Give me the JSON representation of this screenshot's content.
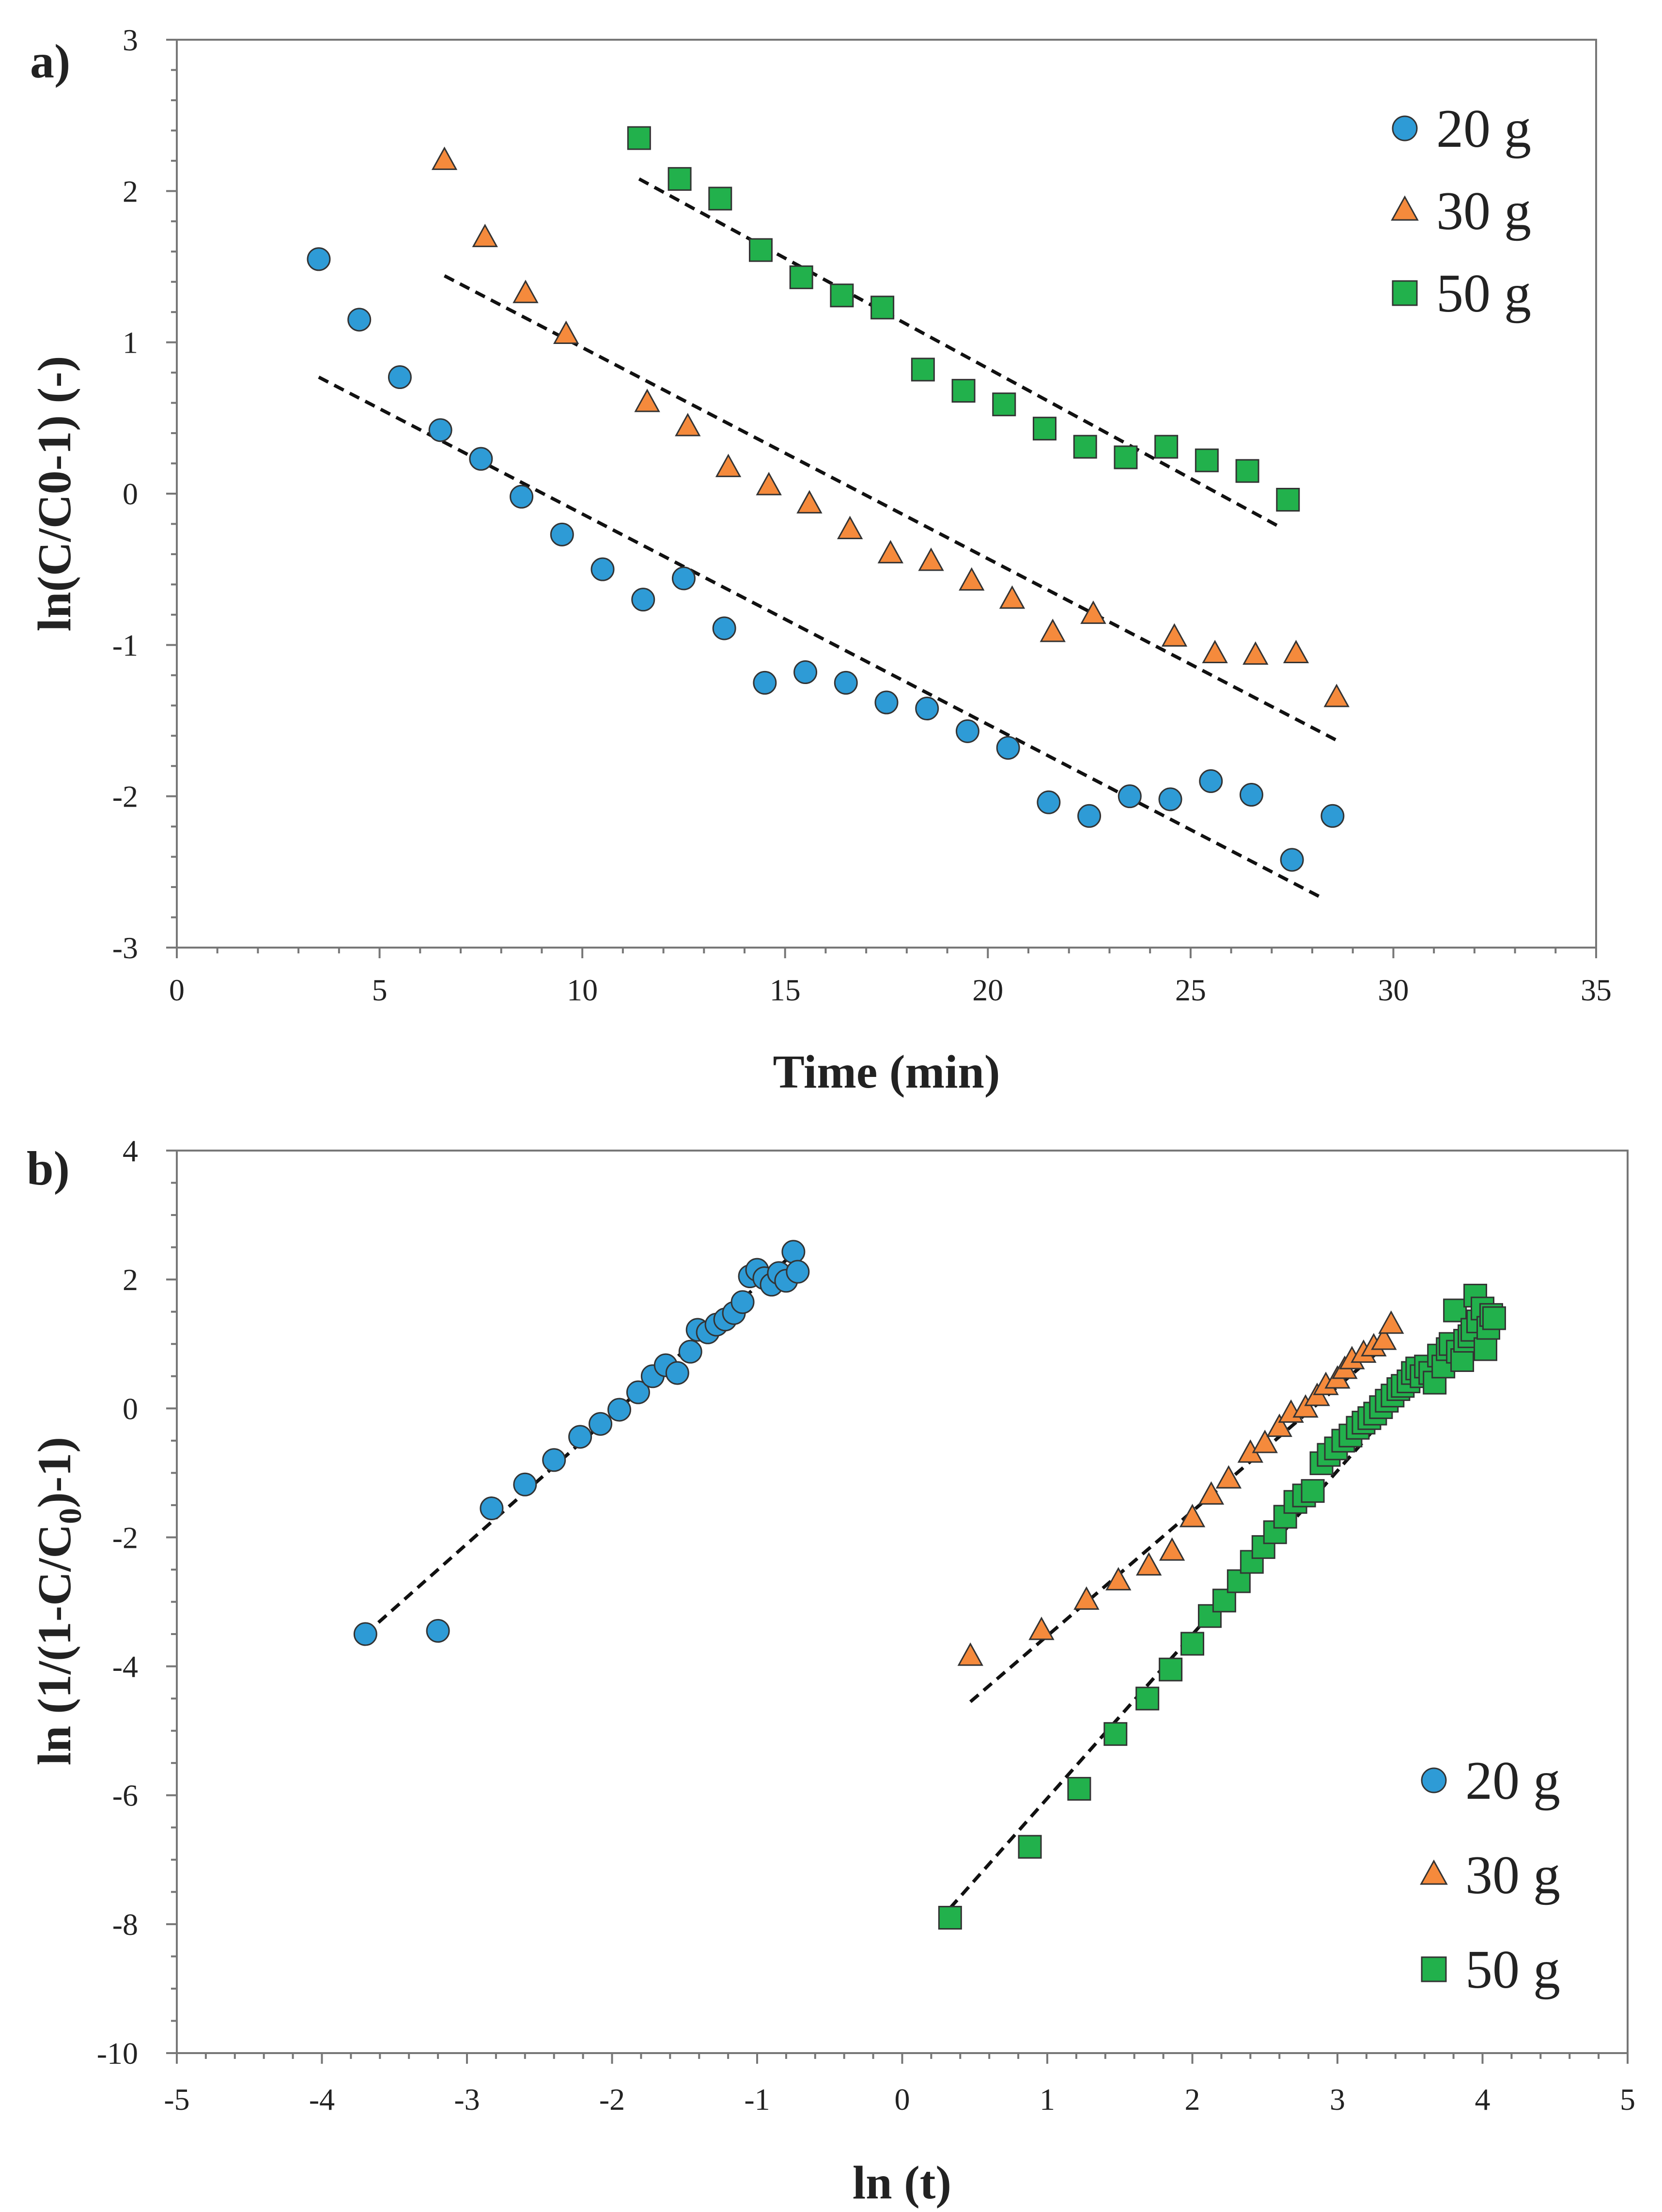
{
  "chart_data": [
    {
      "type": "scatter",
      "panel_label": "a)",
      "title": "",
      "xlabel": "Time (min)",
      "ylabel": "ln(C/C0-1) (-)",
      "xlim": [
        0,
        35
      ],
      "ylim": [
        -3,
        3
      ],
      "xticks": [
        0,
        5,
        10,
        15,
        20,
        25,
        30,
        35
      ],
      "yticks": [
        -3,
        -2,
        -1,
        0,
        1,
        2,
        3
      ],
      "grid": false,
      "legend_position": "top-right",
      "series": [
        {
          "name": "20 g",
          "marker": "circle",
          "color": "#2e9bd6",
          "x": [
            3.5,
            4.5,
            5.5,
            6.5,
            7.5,
            8.5,
            9.5,
            10.5,
            11.5,
            12.5,
            13.5,
            14.5,
            15.5,
            16.5,
            17.5,
            18.5,
            19.5,
            20.5,
            21.5,
            22.5,
            23.5,
            24.5,
            25.5,
            26.5,
            27.5,
            28.5
          ],
          "y": [
            1.55,
            1.15,
            0.77,
            0.42,
            0.23,
            -0.02,
            -0.27,
            -0.5,
            -0.7,
            -0.56,
            -0.89,
            -1.25,
            -1.18,
            -1.25,
            -1.38,
            -1.42,
            -1.57,
            -1.68,
            -2.04,
            -2.13,
            -2.0,
            -2.02,
            -1.9,
            -1.99,
            -2.42,
            -2.13
          ],
          "fit": {
            "x": [
              3.5,
              28.3
            ],
            "y": [
              0.77,
              -2.68
            ]
          }
        },
        {
          "name": "30 g",
          "marker": "triangle",
          "color": "#f58a3c",
          "x": [
            6.6,
            7.6,
            8.6,
            9.6,
            11.6,
            12.6,
            13.6,
            14.6,
            15.6,
            16.6,
            17.6,
            18.6,
            19.6,
            20.6,
            21.6,
            22.6,
            24.6,
            25.6,
            26.6,
            27.6,
            28.6
          ],
          "y": [
            2.2,
            1.69,
            1.32,
            1.05,
            0.6,
            0.44,
            0.17,
            0.05,
            -0.07,
            -0.24,
            -0.4,
            -0.45,
            -0.58,
            -0.7,
            -0.92,
            -0.8,
            -0.95,
            -1.06,
            -1.07,
            -1.06,
            -1.35
          ],
          "fit": {
            "x": [
              6.6,
              28.6
            ],
            "y": [
              1.44,
              -1.63
            ]
          }
        },
        {
          "name": "50 g",
          "marker": "square",
          "color": "#22b14c",
          "x": [
            11.4,
            12.4,
            13.4,
            14.4,
            15.4,
            16.4,
            17.4,
            18.4,
            19.4,
            20.4,
            21.4,
            22.4,
            23.4,
            24.4,
            25.4,
            26.4,
            27.4
          ],
          "y": [
            2.35,
            2.08,
            1.95,
            1.61,
            1.43,
            1.31,
            1.23,
            0.82,
            0.68,
            0.59,
            0.43,
            0.31,
            0.24,
            0.31,
            0.22,
            0.15,
            -0.04
          ],
          "fit": {
            "x": [
              11.4,
              27.2
            ],
            "y": [
              2.08,
              -0.22
            ]
          }
        }
      ]
    },
    {
      "type": "scatter",
      "panel_label": "b)",
      "title": "",
      "xlabel": "ln (t)",
      "ylabel": "ln (1/(1-C/C0)-1)",
      "ylabel_parts": {
        "before": "ln (1/(1-C/C",
        "sub": "0",
        "after": ")-1)"
      },
      "xlim": [
        -5,
        5
      ],
      "ylim": [
        -10,
        4
      ],
      "xticks": [
        -5,
        -4,
        -3,
        -2,
        -1,
        0,
        1,
        2,
        3,
        4,
        5
      ],
      "yticks": [
        -10,
        -8,
        -6,
        -4,
        -2,
        0,
        2,
        4
      ],
      "grid": false,
      "legend_position": "bottom-right",
      "series": [
        {
          "name": "20 g",
          "marker": "circle",
          "color": "#2e9bd6",
          "x": [
            -3.7,
            -3.2,
            -2.83,
            -2.6,
            -2.4,
            -2.22,
            -2.08,
            -1.95,
            -1.82,
            -1.72,
            -1.63,
            -1.55,
            -1.46,
            -1.41,
            -1.34,
            -1.28,
            -1.22,
            -1.16,
            -1.1,
            -1.05,
            -1.0,
            -0.95,
            -0.9,
            -0.85,
            -0.8,
            -0.75,
            -0.72
          ],
          "y": [
            -3.5,
            -3.45,
            -1.55,
            -1.18,
            -0.8,
            -0.44,
            -0.24,
            -0.02,
            0.25,
            0.5,
            0.67,
            0.55,
            0.88,
            1.22,
            1.18,
            1.3,
            1.38,
            1.48,
            1.65,
            2.05,
            2.15,
            2.02,
            1.92,
            2.1,
            1.98,
            2.43,
            2.12
          ],
          "fit": {
            "x": [
              -3.7,
              -0.75
            ],
            "y": [
              -3.5,
              2.4
            ]
          }
        },
        {
          "name": "30 g",
          "marker": "triangle",
          "color": "#f58a3c",
          "x": [
            0.47,
            0.96,
            1.27,
            1.49,
            1.7,
            1.86,
            2.0,
            2.13,
            2.25,
            2.4,
            2.5,
            2.6,
            2.68,
            2.78,
            2.86,
            2.92,
            3.0,
            3.05,
            3.1,
            3.18,
            3.25,
            3.32,
            3.37
          ],
          "y": [
            -3.85,
            -3.45,
            -2.98,
            -2.68,
            -2.45,
            -2.22,
            -1.7,
            -1.35,
            -1.1,
            -0.7,
            -0.55,
            -0.3,
            -0.08,
            0.0,
            0.18,
            0.35,
            0.45,
            0.6,
            0.75,
            0.85,
            0.95,
            1.05,
            1.3
          ],
          "fit": {
            "x": [
              0.47,
              3.37
            ],
            "y": [
              -4.55,
              1.05
            ]
          }
        },
        {
          "name": "50 g",
          "marker": "square",
          "color": "#22b14c",
          "x": [
            0.33,
            0.88,
            1.22,
            1.47,
            1.69,
            1.85,
            2.0,
            2.12,
            2.22,
            2.32,
            2.41,
            2.49,
            2.57,
            2.64,
            2.71,
            2.77,
            2.83,
            2.89,
            2.94,
            2.99,
            3.04,
            3.09,
            3.14,
            3.18,
            3.22,
            3.26,
            3.3,
            3.34,
            3.38,
            3.42,
            3.45,
            3.49,
            3.52,
            3.55,
            3.58,
            3.61,
            3.64,
            3.67,
            3.7,
            3.73,
            3.76,
            3.78,
            3.81,
            3.83,
            3.86,
            3.88,
            3.91,
            3.93,
            3.95,
            3.97,
            4.0,
            4.02,
            4.04,
            4.06,
            4.08
          ],
          "y": [
            -7.9,
            -6.8,
            -5.9,
            -5.05,
            -4.5,
            -4.05,
            -3.65,
            -3.22,
            -2.98,
            -2.68,
            -2.38,
            -2.15,
            -1.92,
            -1.68,
            -1.45,
            -1.35,
            -1.28,
            -0.85,
            -0.72,
            -0.62,
            -0.5,
            -0.42,
            -0.3,
            -0.22,
            -0.15,
            -0.08,
            0.02,
            0.12,
            0.2,
            0.3,
            0.35,
            0.42,
            0.55,
            0.62,
            0.5,
            0.65,
            0.55,
            0.4,
            0.82,
            0.65,
            0.92,
            1.0,
            1.52,
            0.88,
            0.75,
            1.05,
            1.12,
            1.22,
            1.75,
            1.35,
            1.55,
            0.92,
            1.25,
            1.45,
            1.4
          ],
          "fit": {
            "x": [
              0.33,
              4.05
            ],
            "y": [
              -7.75,
              1.7
            ]
          }
        }
      ]
    }
  ]
}
